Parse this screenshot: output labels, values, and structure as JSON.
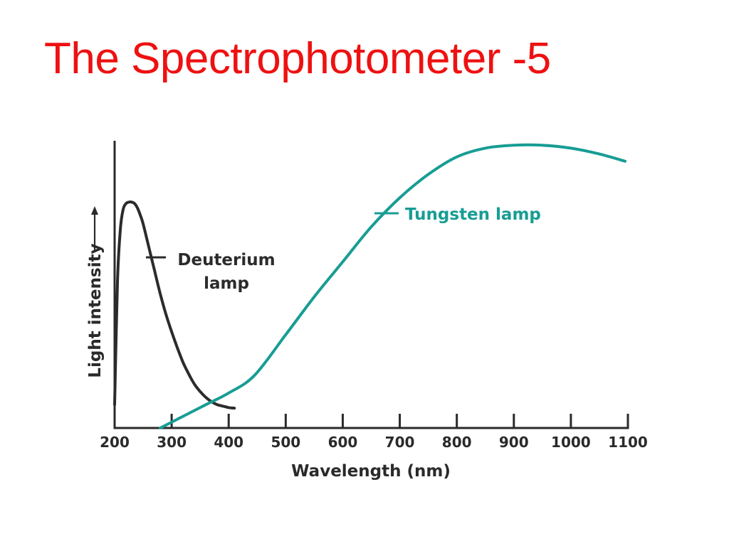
{
  "slide": {
    "title": "The Spectrophotometer -5"
  },
  "chart_data": {
    "type": "line",
    "title": "",
    "xlabel": "Wavelength (nm)",
    "ylabel": "Light intensity",
    "xlim": [
      200,
      1100
    ],
    "ylim": [
      0,
      100
    ],
    "xticks": [
      200,
      300,
      400,
      500,
      600,
      700,
      800,
      900,
      1000,
      1100
    ],
    "grid": false,
    "series": [
      {
        "name": "Deuterium lamp",
        "label_lines": [
          "Deuterium",
          "lamp"
        ],
        "color": "#2b2b2b",
        "x": [
          200,
          205,
          210,
          215,
          220,
          225,
          230,
          235,
          240,
          245,
          250,
          260,
          270,
          280,
          290,
          300,
          310,
          320,
          330,
          340,
          350,
          360,
          370,
          380,
          390,
          400,
          410
        ],
        "y": [
          8,
          50,
          68,
          75,
          77,
          77.5,
          77.5,
          77,
          75.5,
          73,
          70,
          62,
          54,
          46,
          39,
          33,
          27.5,
          22.5,
          18.5,
          15,
          12.5,
          10.5,
          9,
          8,
          7.5,
          7,
          6.8
        ]
      },
      {
        "name": "Tungsten lamp",
        "label_lines": [
          "Tungsten lamp"
        ],
        "color": "#179d94",
        "x": [
          280,
          320,
          360,
          400,
          445,
          500,
          550,
          600,
          650,
          700,
          750,
          800,
          850,
          900,
          950,
          1000,
          1050,
          1095
        ],
        "y": [
          0,
          4,
          8,
          12,
          18,
          32,
          45,
          57,
          69,
          79,
          87,
          93,
          96,
          97,
          97,
          96,
          94,
          91.5
        ]
      }
    ]
  }
}
